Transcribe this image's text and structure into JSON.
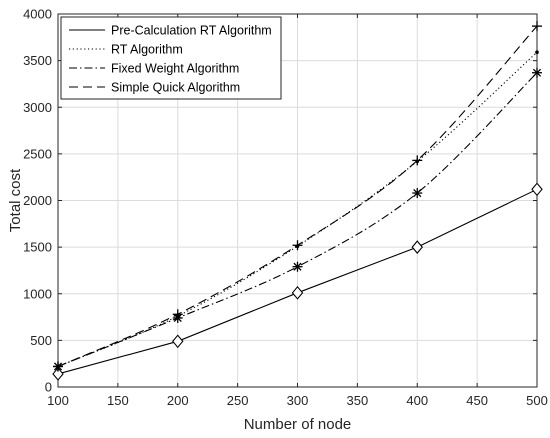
{
  "chart_data": {
    "type": "line",
    "title": "",
    "xlabel": "Number of node",
    "ylabel": "Total cost",
    "xlim": [
      100,
      500
    ],
    "ylim": [
      0,
      4000
    ],
    "xticks": [
      100,
      150,
      200,
      250,
      300,
      350,
      400,
      450,
      500
    ],
    "yticks": [
      0,
      500,
      1000,
      1500,
      2000,
      2500,
      3000,
      3500,
      4000
    ],
    "grid": true,
    "legend_position": "top-left",
    "series": [
      {
        "name": "Pre-Calculation RT Algorithm",
        "linestyle": "solid",
        "marker": "diamond",
        "color": "#000000",
        "x": [
          100,
          200,
          300,
          400,
          500
        ],
        "y": [
          140,
          490,
          1010,
          1500,
          2120
        ]
      },
      {
        "name": "RT Algorithm",
        "linestyle": "dotted",
        "marker": "point",
        "color": "#000000",
        "x": [
          100,
          200,
          300,
          400,
          500
        ],
        "y": [
          220,
          760,
          1510,
          2420,
          3590
        ]
      },
      {
        "name": "Fixed Weight Algorithm",
        "linestyle": "dashdot",
        "marker": "asterisk",
        "color": "#000000",
        "x": [
          100,
          200,
          300,
          400,
          500
        ],
        "y": [
          220,
          740,
          1290,
          2080,
          3370
        ]
      },
      {
        "name": "Simple Quick Algorithm",
        "linestyle": "dashed",
        "marker": "plus",
        "color": "#000000",
        "x": [
          100,
          200,
          300,
          400,
          500
        ],
        "y": [
          220,
          780,
          1520,
          2430,
          3870
        ]
      }
    ]
  }
}
